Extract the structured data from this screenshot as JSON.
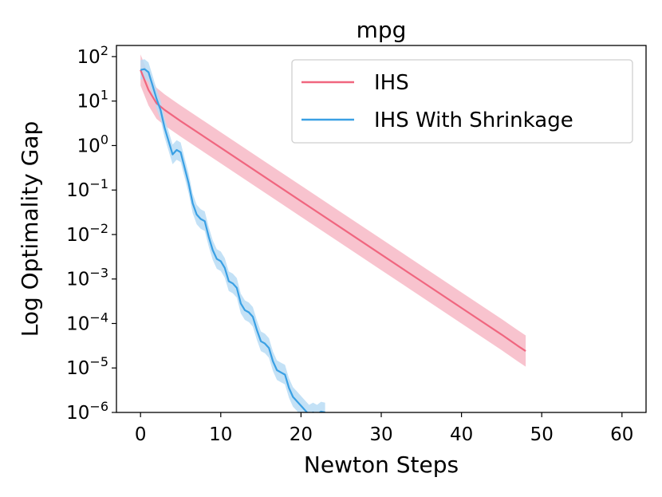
{
  "chart_data": {
    "type": "line",
    "title": "mpg",
    "xlabel": "Newton Steps",
    "ylabel": "Log Optimality Gap",
    "yscale": "log",
    "xlim": [
      -3,
      63
    ],
    "ylim_log10": [
      -6,
      2.25
    ],
    "xticks": [
      0,
      10,
      20,
      30,
      40,
      50,
      60
    ],
    "yticks": [
      {
        "base": "10",
        "exp": "2",
        "value": 2
      },
      {
        "base": "10",
        "exp": "1",
        "value": 1
      },
      {
        "base": "10",
        "exp": "0",
        "value": 0
      },
      {
        "base": "10",
        "exp": "−1",
        "value": -1
      },
      {
        "base": "10",
        "exp": "−2",
        "value": -2
      },
      {
        "base": "10",
        "exp": "−3",
        "value": -3
      },
      {
        "base": "10",
        "exp": "−4",
        "value": -4
      },
      {
        "base": "10",
        "exp": "−5",
        "value": -5
      },
      {
        "base": "10",
        "exp": "−6",
        "value": -6
      }
    ],
    "legend_position": "top-right",
    "series": [
      {
        "name": "IHS",
        "color": "#f0667f",
        "band_color": "#f7b8c5",
        "x": [
          0,
          1,
          2,
          3,
          5,
          10,
          15,
          20,
          25,
          30,
          35,
          40,
          45,
          47,
          48
        ],
        "log10": [
          1.7,
          1.25,
          0.95,
          0.8,
          0.55,
          -0.05,
          -0.65,
          -1.25,
          -1.85,
          -2.45,
          -3.05,
          -3.65,
          -4.25,
          -4.5,
          -4.62
        ],
        "band_half_width_log10": 0.35
      },
      {
        "name": "IHS With Shrinkage",
        "color": "#3aa0e4",
        "band_color": "#b9dcf5",
        "x": [
          0,
          0.5,
          1,
          1.5,
          2,
          2.5,
          3,
          3.5,
          4,
          4.5,
          5,
          5.5,
          6,
          6.5,
          7,
          7.5,
          8,
          8.5,
          9,
          9.5,
          10,
          10.5,
          11,
          11.5,
          12,
          12.5,
          13,
          13.5,
          14,
          14.5,
          15,
          15.5,
          16,
          16.5,
          17,
          17.5,
          18,
          18.5,
          19,
          19.5,
          20,
          20.5,
          21,
          21.5,
          22,
          22.5,
          23
        ],
        "log10": [
          1.7,
          1.72,
          1.65,
          1.35,
          1.05,
          0.8,
          0.4,
          0.1,
          -0.2,
          -0.1,
          -0.15,
          -0.5,
          -0.85,
          -1.3,
          -1.55,
          -1.65,
          -1.7,
          -2.05,
          -2.35,
          -2.55,
          -2.6,
          -2.75,
          -3.05,
          -3.1,
          -3.2,
          -3.55,
          -3.7,
          -3.75,
          -3.85,
          -4.15,
          -4.4,
          -4.45,
          -4.55,
          -4.85,
          -5.05,
          -5.1,
          -5.15,
          -5.45,
          -5.65,
          -5.75,
          -5.85,
          -5.95,
          -6.05,
          -6.0,
          -6.05,
          -5.98,
          -6.0
        ],
        "band_half_width_log10": 0.22
      }
    ]
  }
}
